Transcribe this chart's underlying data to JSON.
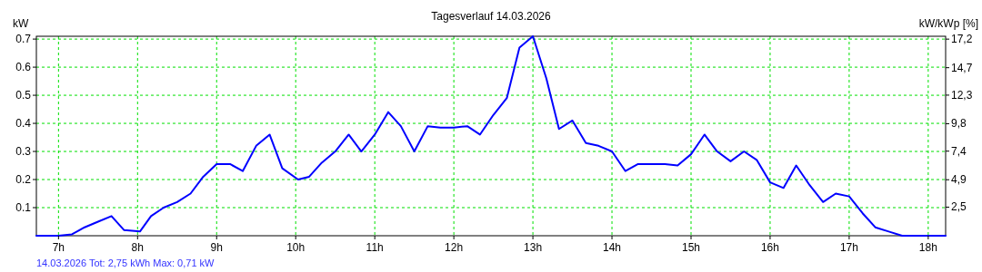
{
  "chart_data": {
    "type": "line",
    "title": "Tagesverlauf 14.03.2026",
    "ylabel": "kW",
    "y2label": "kW/kWp [%]",
    "annotations": [
      "14.03.2026 Tot: 2,75 kWh Max: 0,71 kW"
    ],
    "x": [
      6.72,
      7.0,
      7.17,
      7.33,
      7.5,
      7.67,
      7.83,
      8.03,
      8.17,
      8.33,
      8.5,
      8.67,
      8.83,
      9.0,
      9.17,
      9.33,
      9.5,
      9.67,
      9.83,
      10.03,
      10.17,
      10.33,
      10.5,
      10.67,
      10.83,
      11.0,
      11.17,
      11.33,
      11.5,
      11.67,
      11.83,
      12.0,
      12.17,
      12.33,
      12.5,
      12.67,
      12.83,
      13.0,
      13.17,
      13.33,
      13.5,
      13.67,
      13.83,
      14.0,
      14.17,
      14.33,
      14.5,
      14.67,
      14.83,
      15.0,
      15.17,
      15.33,
      15.5,
      15.67,
      15.83,
      16.0,
      16.17,
      16.33,
      16.5,
      16.67,
      16.83,
      17.0,
      17.17,
      17.33,
      17.5,
      17.67,
      18.0,
      18.22
    ],
    "series": [
      {
        "color": "#0000ff",
        "values": [
          0,
          0,
          0.005,
          0.03,
          0.05,
          0.07,
          0.02,
          0.015,
          0.07,
          0.1,
          0.12,
          0.15,
          0.21,
          0.255,
          0.255,
          0.23,
          0.32,
          0.36,
          0.24,
          0.2,
          0.21,
          0.26,
          0.3,
          0.36,
          0.3,
          0.36,
          0.44,
          0.39,
          0.3,
          0.39,
          0.385,
          0.385,
          0.39,
          0.36,
          0.43,
          0.49,
          0.67,
          0.71,
          0.56,
          0.38,
          0.41,
          0.33,
          0.32,
          0.3,
          0.23,
          0.255,
          0.255,
          0.255,
          0.25,
          0.29,
          0.36,
          0.3,
          0.265,
          0.3,
          0.27,
          0.19,
          0.17,
          0.25,
          0.18,
          0.12,
          0.15,
          0.14,
          0.08,
          0.03,
          0.015,
          0,
          0,
          0
        ]
      }
    ],
    "xlim": [
      6.72,
      18.22
    ],
    "xticks": [
      {
        "value": 7,
        "label": "7h"
      },
      {
        "value": 8,
        "label": "8h"
      },
      {
        "value": 9,
        "label": "9h"
      },
      {
        "value": 10,
        "label": "10h"
      },
      {
        "value": 11,
        "label": "11h"
      },
      {
        "value": 12,
        "label": "12h"
      },
      {
        "value": 13,
        "label": "13h"
      },
      {
        "value": 14,
        "label": "14h"
      },
      {
        "value": 15,
        "label": "15h"
      },
      {
        "value": 16,
        "label": "16h"
      },
      {
        "value": 17,
        "label": "17h"
      },
      {
        "value": 18,
        "label": "18h"
      }
    ],
    "ylim": [
      0,
      0.71
    ],
    "yticks": [
      0.1,
      0.2,
      0.3,
      0.4,
      0.5,
      0.6,
      0.7
    ],
    "y2lim": [
      0,
      17.45
    ],
    "y2ticks": [
      {
        "value": 2.5,
        "label": "2,5"
      },
      {
        "value": 4.9,
        "label": "4,9"
      },
      {
        "value": 7.4,
        "label": "7,4"
      },
      {
        "value": 9.8,
        "label": "9,8"
      },
      {
        "value": 12.3,
        "label": "12,3"
      },
      {
        "value": 14.7,
        "label": "14,7"
      },
      {
        "value": 17.2,
        "label": "17,2"
      }
    ],
    "grid": true,
    "marker": "none",
    "line_style": "solid"
  }
}
